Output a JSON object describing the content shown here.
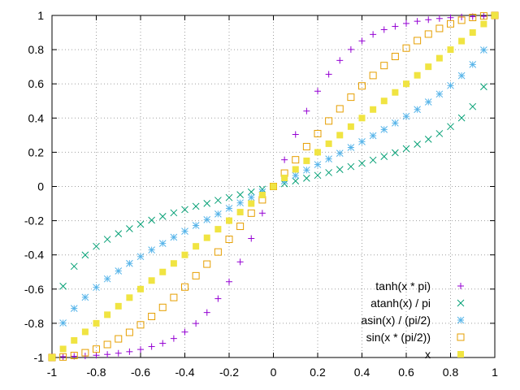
{
  "chart_data": {
    "type": "scatter",
    "xlim": [
      -1,
      1
    ],
    "ylim": [
      -1,
      1
    ],
    "grid": true,
    "legend_position": "bottom-right",
    "xticks": [
      "-1",
      "-0.8",
      "-0.6",
      "-0.4",
      "-0.2",
      "0",
      "0.2",
      "0.4",
      "0.6",
      "0.8",
      "1"
    ],
    "yticks": [
      "-1",
      "-0.8",
      "-0.6",
      "-0.4",
      "-0.2",
      "0",
      "0.2",
      "0.4",
      "0.6",
      "0.8",
      "1"
    ],
    "x": [
      -1,
      -0.95,
      -0.9,
      -0.85,
      -0.8,
      -0.75,
      -0.7,
      -0.65,
      -0.6,
      -0.55,
      -0.5,
      -0.45,
      -0.4,
      -0.35,
      -0.3,
      -0.25,
      -0.2,
      -0.15,
      -0.1,
      -0.05,
      0,
      0.05,
      0.1,
      0.15,
      0.2,
      0.25,
      0.3,
      0.35,
      0.4,
      0.45,
      0.5,
      0.55,
      0.6,
      0.65,
      0.7,
      0.75,
      0.8,
      0.85,
      0.9,
      0.95,
      1
    ],
    "series": [
      {
        "name": "tanh(x * pi)",
        "marker": "plus",
        "color": "#9400d3",
        "values": [
          -0.996,
          -0.995,
          -0.993,
          -0.991,
          -0.987,
          -0.982,
          -0.975,
          -0.966,
          -0.953,
          -0.936,
          -0.917,
          -0.889,
          -0.851,
          -0.801,
          -0.737,
          -0.656,
          -0.557,
          -0.441,
          -0.304,
          -0.156,
          0,
          0.156,
          0.304,
          0.441,
          0.557,
          0.656,
          0.737,
          0.801,
          0.851,
          0.889,
          0.917,
          0.936,
          0.953,
          0.966,
          0.975,
          0.982,
          0.987,
          0.991,
          0.993,
          0.995,
          0.996
        ]
      },
      {
        "name": "atanh(x) / pi",
        "marker": "cross",
        "color": "#009e73",
        "values": [
          null,
          -0.583,
          -0.467,
          -0.401,
          -0.35,
          -0.309,
          -0.276,
          -0.247,
          -0.221,
          -0.197,
          -0.175,
          -0.154,
          -0.135,
          -0.116,
          -0.099,
          -0.081,
          -0.065,
          -0.048,
          -0.032,
          -0.016,
          0,
          0.016,
          0.032,
          0.048,
          0.065,
          0.081,
          0.099,
          0.116,
          0.135,
          0.154,
          0.175,
          0.197,
          0.221,
          0.247,
          0.276,
          0.309,
          0.35,
          0.401,
          0.467,
          0.583,
          null
        ]
      },
      {
        "name": "asin(x) / (pi/2)",
        "marker": "star",
        "color": "#56b4e9",
        "values": [
          -1,
          -0.798,
          -0.713,
          -0.648,
          -0.59,
          -0.54,
          -0.494,
          -0.45,
          -0.41,
          -0.371,
          -0.333,
          -0.297,
          -0.262,
          -0.228,
          -0.194,
          -0.161,
          -0.128,
          -0.096,
          -0.064,
          -0.032,
          0,
          0.032,
          0.064,
          0.096,
          0.128,
          0.161,
          0.194,
          0.228,
          0.262,
          0.297,
          0.333,
          0.371,
          0.41,
          0.45,
          0.494,
          0.54,
          0.59,
          0.648,
          0.713,
          0.798,
          1
        ]
      },
      {
        "name": "sin(x * (pi/2))",
        "marker": "open-square",
        "color": "#e69f00",
        "values": [
          -1,
          -0.997,
          -0.988,
          -0.972,
          -0.951,
          -0.924,
          -0.891,
          -0.853,
          -0.809,
          -0.76,
          -0.707,
          -0.649,
          -0.588,
          -0.522,
          -0.454,
          -0.383,
          -0.309,
          -0.233,
          -0.156,
          -0.078,
          0,
          0.078,
          0.156,
          0.233,
          0.309,
          0.383,
          0.454,
          0.522,
          0.588,
          0.649,
          0.707,
          0.76,
          0.809,
          0.853,
          0.891,
          0.924,
          0.951,
          0.972,
          0.988,
          0.997,
          1
        ]
      },
      {
        "name": "x",
        "marker": "filled-square",
        "color": "#f0e442",
        "values": [
          -1,
          -0.95,
          -0.9,
          -0.85,
          -0.8,
          -0.75,
          -0.7,
          -0.65,
          -0.6,
          -0.55,
          -0.5,
          -0.45,
          -0.4,
          -0.35,
          -0.3,
          -0.25,
          -0.2,
          -0.15,
          -0.1,
          -0.05,
          0,
          0.05,
          0.1,
          0.15,
          0.2,
          0.25,
          0.3,
          0.35,
          0.4,
          0.45,
          0.5,
          0.55,
          0.6,
          0.65,
          0.7,
          0.75,
          0.8,
          0.85,
          0.9,
          0.95,
          1
        ]
      }
    ]
  }
}
